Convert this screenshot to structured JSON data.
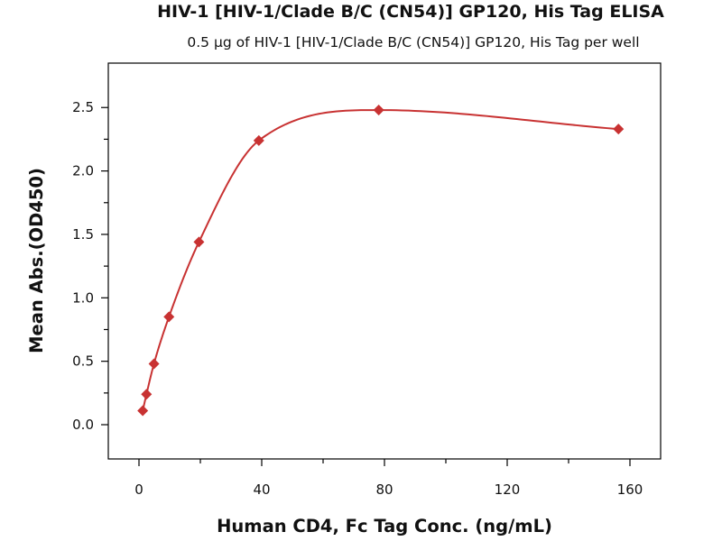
{
  "chart_data": {
    "type": "scatter",
    "title": "HIV-1 [HIV-1/Clade B/C (CN54)] GP120, His Tag ELISA",
    "subtitle": "0.5 μg of HIV-1 [HIV-1/Clade B/C (CN54)] GP120, His Tag per well",
    "xlabel": "Human CD4, Fc Tag Conc. (ng/mL)",
    "ylabel": "Mean Abs.(OD450)",
    "xlim": [
      -10,
      170
    ],
    "ylim": [
      -0.27,
      2.85
    ],
    "x_ticks": [
      0,
      40,
      80,
      120,
      160
    ],
    "x_tick_labels": [
      "0",
      "40",
      "80",
      "120",
      "160"
    ],
    "y_ticks": [
      0.0,
      0.5,
      1.0,
      1.5,
      2.0,
      2.5
    ],
    "y_tick_labels": [
      "0.0",
      "0.5",
      "1.0",
      "1.5",
      "2.0",
      "2.5"
    ],
    "grid": false,
    "legend": "none",
    "series": [
      {
        "x": [
          1.22,
          2.44,
          4.88,
          9.77,
          19.53,
          39.06,
          78.13,
          156.25
        ],
        "y": [
          0.11,
          0.24,
          0.48,
          0.85,
          1.44,
          2.24,
          2.48,
          2.33
        ],
        "marker": "diamond",
        "fit_curve": true,
        "color": "#c83232"
      }
    ]
  }
}
